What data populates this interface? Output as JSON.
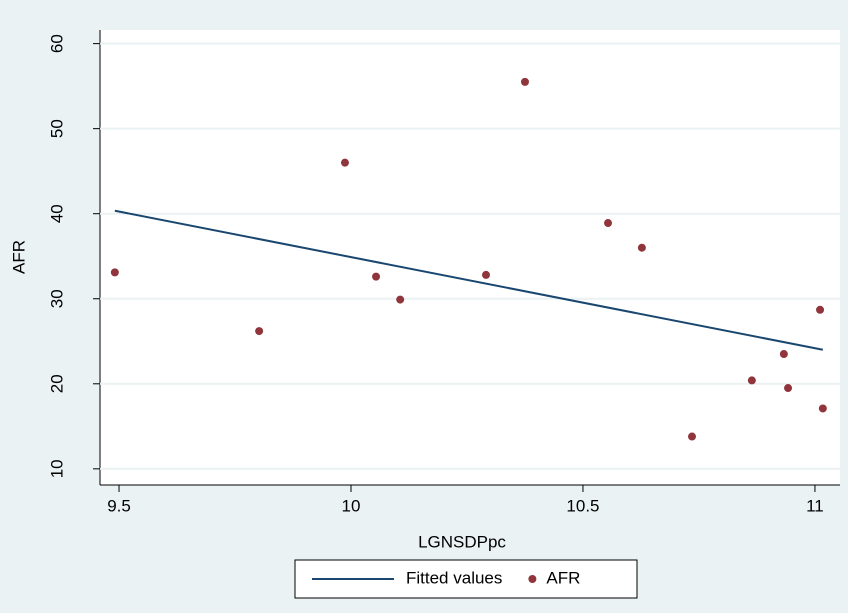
{
  "chart_data": {
    "type": "scatter",
    "xlabel": "LGNSDPpc",
    "ylabel": "AFR",
    "xlim": [
      9.459,
      11.054
    ],
    "ylim": [
      8.1,
      61.6
    ],
    "xticks": [
      9.5,
      10,
      10.5,
      11
    ],
    "yticks": [
      10,
      20,
      30,
      40,
      50,
      60
    ],
    "grid": true,
    "legend": "bottom",
    "series": [
      {
        "name": "Fitted values",
        "type": "line",
        "color": "#1a476f",
        "x": [
          9.491,
          11.017
        ],
        "values": [
          40.35,
          24.0
        ]
      },
      {
        "name": "AFR",
        "type": "scatter",
        "color": "#90353b",
        "x": [
          9.491,
          9.802,
          9.987,
          10.054,
          10.106,
          10.291,
          10.375,
          10.554,
          10.627,
          10.735,
          10.864,
          10.933,
          10.942,
          11.011,
          11.017
        ],
        "values": [
          33.1,
          26.2,
          46.0,
          32.6,
          29.9,
          32.8,
          55.5,
          38.9,
          36.0,
          13.8,
          20.4,
          23.5,
          19.5,
          28.7,
          17.1
        ]
      }
    ]
  }
}
